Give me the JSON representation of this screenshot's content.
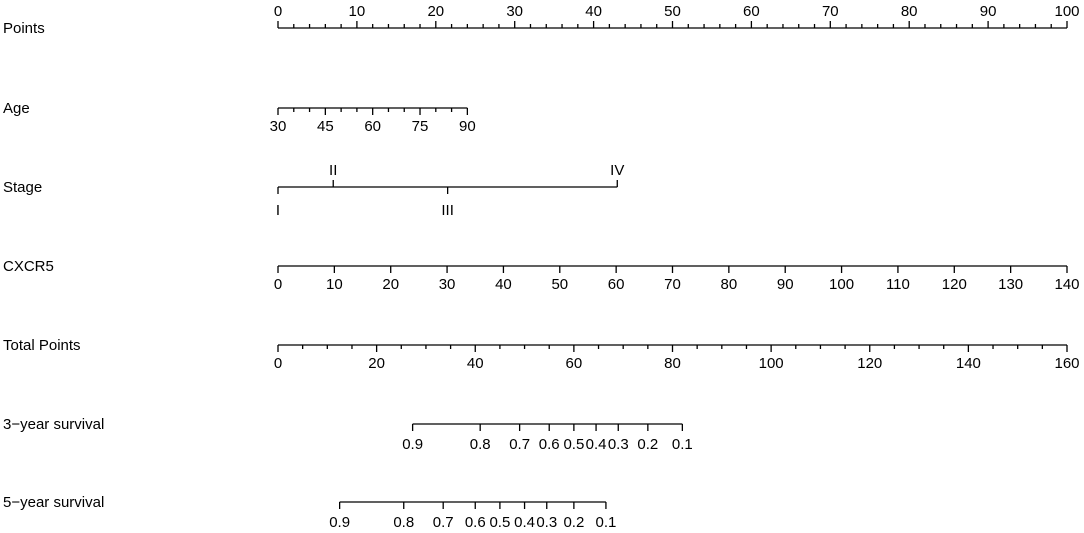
{
  "chart_data": {
    "type": "nomogram",
    "scales": [
      {
        "name": "Points",
        "range": [
          0,
          100
        ],
        "label_position": "above",
        "labels": [
          0,
          10,
          20,
          30,
          40,
          50,
          60,
          70,
          80,
          90,
          100
        ],
        "minor_ticks": [
          0,
          2,
          4,
          6,
          8,
          10,
          12,
          14,
          16,
          18,
          20,
          22,
          24,
          26,
          28,
          30,
          32,
          34,
          36,
          38,
          40,
          42,
          44,
          46,
          48,
          50,
          52,
          54,
          56,
          58,
          60,
          62,
          64,
          66,
          68,
          70,
          72,
          74,
          76,
          78,
          80,
          82,
          84,
          86,
          88,
          90,
          92,
          94,
          96,
          98,
          100
        ],
        "points_map": [
          [
            0,
            0
          ],
          [
            100,
            100
          ]
        ]
      },
      {
        "name": "Age",
        "range": [
          30,
          90
        ],
        "label_position": "below",
        "labels": [
          30,
          45,
          60,
          75,
          90
        ],
        "minor_ticks": [
          30,
          35,
          40,
          45,
          50,
          55,
          60,
          65,
          70,
          75,
          80,
          85,
          90
        ],
        "points_map": [
          [
            30,
            0
          ],
          [
            90,
            24
          ]
        ]
      },
      {
        "name": "Stage",
        "type": "categorical",
        "categories": [
          {
            "label": "I",
            "points": 0,
            "label_position": "below"
          },
          {
            "label": "II",
            "points": 7,
            "label_position": "above"
          },
          {
            "label": "III",
            "points": 21.5,
            "label_position": "below"
          },
          {
            "label": "IV",
            "points": 43,
            "label_position": "above"
          }
        ]
      },
      {
        "name": "CXCR5",
        "range": [
          0,
          140
        ],
        "label_position": "below",
        "labels": [
          0,
          10,
          20,
          30,
          40,
          50,
          60,
          70,
          80,
          90,
          100,
          110,
          120,
          130,
          140
        ],
        "minor_ticks": [],
        "points_map": [
          [
            0,
            0
          ],
          [
            140,
            100
          ]
        ]
      },
      {
        "name": "Total Points",
        "range": [
          0,
          160
        ],
        "label_position": "below",
        "labels": [
          0,
          20,
          40,
          60,
          80,
          100,
          120,
          140,
          160
        ],
        "minor_ticks": [
          0,
          5,
          10,
          15,
          20,
          25,
          30,
          35,
          40,
          45,
          50,
          55,
          60,
          65,
          70,
          75,
          80,
          85,
          90,
          95,
          100,
          105,
          110,
          115,
          120,
          125,
          130,
          135,
          140,
          145,
          150,
          155,
          160
        ],
        "points_map": [
          [
            0,
            0
          ],
          [
            160,
            100
          ]
        ]
      },
      {
        "name": "3−year survival",
        "label_position": "below",
        "axis_scale": "total_points",
        "ticks": [
          {
            "label": "0.9",
            "total": 27.3
          },
          {
            "label": "0.8",
            "total": 41.0
          },
          {
            "label": "0.7",
            "total": 49.0
          },
          {
            "label": "0.6",
            "total": 55.0
          },
          {
            "label": "0.5",
            "total": 60.0
          },
          {
            "label": "0.4",
            "total": 64.5
          },
          {
            "label": "0.3",
            "total": 69.0
          },
          {
            "label": "0.2",
            "total": 75.0
          },
          {
            "label": "0.1",
            "total": 82.0
          }
        ]
      },
      {
        "name": "5−year survival",
        "label_position": "below",
        "axis_scale": "total_points",
        "ticks": [
          {
            "label": "0.9",
            "total": 12.5
          },
          {
            "label": "0.8",
            "total": 25.5
          },
          {
            "label": "0.7",
            "total": 33.5
          },
          {
            "label": "0.6",
            "total": 40.0
          },
          {
            "label": "0.5",
            "total": 45.0
          },
          {
            "label": "0.4",
            "total": 50.0
          },
          {
            "label": "0.3",
            "total": 54.5
          },
          {
            "label": "0.2",
            "total": 60.0
          },
          {
            "label": "0.1",
            "total": 66.5
          }
        ]
      }
    ]
  }
}
